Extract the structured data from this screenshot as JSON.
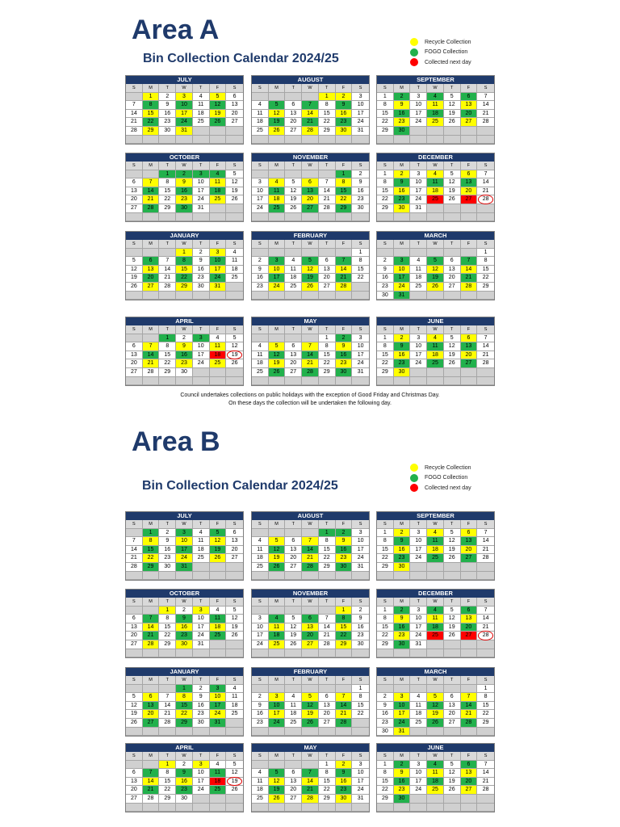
{
  "colors": {
    "recycle": "#ffff00",
    "fogo": "#22b14c",
    "next_day": "#ff0000",
    "header": "#1f3a6b"
  },
  "day_headers": [
    "S",
    "M",
    "T",
    "W",
    "T",
    "F",
    "S"
  ],
  "legend": [
    "Recycle Collection",
    "FOGO Collection",
    "Collected next day"
  ],
  "note_lines": [
    "Council undertakes collections on public holidays with the exception of Good Friday and Christmas Day.",
    "On these days the collection will be undertaken the following day."
  ],
  "areas": [
    {
      "title": "Area A",
      "subtitle": "Bin Collection Calendar 2024/25",
      "months": [
        {
          "name": "JULY",
          "start": 1,
          "days": 31,
          "y": [
            1,
            3,
            5,
            15,
            17,
            19,
            29,
            31
          ],
          "g": [
            8,
            10,
            12,
            22,
            24,
            26
          ],
          "r": [],
          "circ": []
        },
        {
          "name": "AUGUST",
          "start": 4,
          "days": 31,
          "y": [
            1,
            2,
            12,
            14,
            16,
            26,
            28,
            30
          ],
          "g": [
            5,
            7,
            9,
            19,
            21,
            23
          ],
          "r": [],
          "circ": []
        },
        {
          "name": "SEPTEMBER",
          "start": 0,
          "days": 30,
          "y": [
            9,
            11,
            13,
            23,
            25,
            27
          ],
          "g": [
            2,
            4,
            6,
            16,
            18,
            20,
            30
          ],
          "r": [],
          "circ": []
        },
        {
          "name": "OCTOBER",
          "start": 2,
          "days": 31,
          "y": [
            7,
            9,
            11,
            21,
            23,
            25
          ],
          "g": [
            1,
            2,
            3,
            4,
            14,
            16,
            18,
            28,
            30
          ],
          "r": [],
          "circ": []
        },
        {
          "name": "NOVEMBER",
          "start": 5,
          "days": 30,
          "y": [
            4,
            6,
            8,
            18,
            20,
            22
          ],
          "g": [
            1,
            11,
            13,
            15,
            25,
            27,
            29
          ],
          "r": [],
          "circ": []
        },
        {
          "name": "DECEMBER",
          "start": 0,
          "days": 31,
          "y": [
            2,
            4,
            6,
            16,
            18,
            20,
            30
          ],
          "g": [
            9,
            11,
            13,
            23
          ],
          "r": [
            25,
            27
          ],
          "circ": [
            28
          ]
        },
        {
          "name": "JANUARY",
          "start": 3,
          "days": 31,
          "y": [
            1,
            3,
            13,
            15,
            17,
            27,
            29,
            31
          ],
          "g": [
            6,
            8,
            10,
            20,
            22,
            24
          ],
          "r": [],
          "circ": []
        },
        {
          "name": "FEBRUARY",
          "start": 6,
          "days": 28,
          "y": [
            10,
            12,
            14,
            24,
            26,
            28
          ],
          "g": [
            3,
            5,
            7,
            17,
            19,
            21
          ],
          "r": [],
          "circ": []
        },
        {
          "name": "MARCH",
          "start": 6,
          "days": 31,
          "y": [
            10,
            12,
            14,
            24,
            26,
            28
          ],
          "g": [
            3,
            5,
            7,
            17,
            19,
            21,
            31
          ],
          "r": [],
          "circ": []
        },
        {
          "name": "APRIL",
          "start": 2,
          "days": 30,
          "y": [
            7,
            9,
            11,
            21,
            23,
            25
          ],
          "g": [
            1,
            3,
            14,
            16
          ],
          "r": [
            18
          ],
          "circ": [
            19
          ]
        },
        {
          "name": "MAY",
          "start": 4,
          "days": 31,
          "y": [
            5,
            7,
            9,
            19,
            21,
            23
          ],
          "g": [
            2,
            12,
            14,
            16,
            26,
            28,
            30
          ],
          "r": [],
          "circ": []
        },
        {
          "name": "JUNE",
          "start": 0,
          "days": 30,
          "y": [
            2,
            4,
            6,
            16,
            18,
            20,
            30
          ],
          "g": [
            9,
            11,
            13,
            23,
            25,
            27
          ],
          "r": [],
          "circ": []
        }
      ]
    },
    {
      "title": "Area B",
      "subtitle": "Bin Collection Calendar 2024/25",
      "months": [
        {
          "name": "JULY",
          "start": 1,
          "days": 31,
          "y": [
            8,
            10,
            12,
            22,
            24,
            26
          ],
          "g": [
            1,
            3,
            5,
            15,
            17,
            19,
            29,
            31
          ],
          "r": [],
          "circ": []
        },
        {
          "name": "AUGUST",
          "start": 4,
          "days": 31,
          "y": [
            5,
            7,
            9,
            19,
            21,
            23
          ],
          "g": [
            1,
            2,
            12,
            14,
            16,
            26,
            28,
            30
          ],
          "r": [],
          "circ": []
        },
        {
          "name": "SEPTEMBER",
          "start": 0,
          "days": 30,
          "y": [
            2,
            4,
            6,
            16,
            18,
            20,
            30
          ],
          "g": [
            9,
            11,
            13,
            23,
            25,
            27
          ],
          "r": [],
          "circ": []
        },
        {
          "name": "OCTOBER",
          "start": 2,
          "days": 31,
          "y": [
            1,
            3,
            14,
            16,
            18,
            28,
            30
          ],
          "g": [
            7,
            9,
            11,
            21,
            23,
            25
          ],
          "r": [],
          "circ": []
        },
        {
          "name": "NOVEMBER",
          "start": 5,
          "days": 30,
          "y": [
            1,
            11,
            13,
            15,
            25,
            27,
            29
          ],
          "g": [
            4,
            6,
            8,
            18,
            20,
            22
          ],
          "r": [],
          "circ": []
        },
        {
          "name": "DECEMBER",
          "start": 0,
          "days": 31,
          "y": [
            9,
            11,
            13,
            23
          ],
          "g": [
            2,
            4,
            6,
            16,
            18,
            20,
            30
          ],
          "r": [
            25,
            27
          ],
          "circ": [
            28
          ]
        },
        {
          "name": "JANUARY",
          "start": 3,
          "days": 31,
          "y": [
            6,
            8,
            10,
            20,
            22,
            24
          ],
          "g": [
            1,
            3,
            13,
            15,
            17,
            27,
            29,
            31
          ],
          "r": [],
          "circ": []
        },
        {
          "name": "FEBRUARY",
          "start": 6,
          "days": 28,
          "y": [
            3,
            5,
            7,
            17,
            19,
            21
          ],
          "g": [
            10,
            12,
            14,
            24,
            26,
            28
          ],
          "r": [],
          "circ": []
        },
        {
          "name": "MARCH",
          "start": 6,
          "days": 31,
          "y": [
            3,
            5,
            7,
            17,
            19,
            21,
            31
          ],
          "g": [
            10,
            12,
            14,
            24,
            26,
            28
          ],
          "r": [],
          "circ": []
        },
        {
          "name": "APRIL",
          "start": 2,
          "days": 30,
          "y": [
            1,
            3,
            14,
            16
          ],
          "g": [
            7,
            9,
            11,
            21,
            23,
            25
          ],
          "r": [
            18
          ],
          "circ": [
            19
          ]
        },
        {
          "name": "MAY",
          "start": 4,
          "days": 31,
          "y": [
            2,
            12,
            14,
            16,
            26,
            28,
            30
          ],
          "g": [
            5,
            7,
            9,
            19,
            21,
            23
          ],
          "r": [],
          "circ": []
        },
        {
          "name": "JUNE",
          "start": 0,
          "days": 30,
          "y": [
            9,
            11,
            13,
            23,
            25,
            27
          ],
          "g": [
            2,
            4,
            6,
            16,
            18,
            20,
            30
          ],
          "r": [],
          "circ": []
        }
      ]
    }
  ]
}
